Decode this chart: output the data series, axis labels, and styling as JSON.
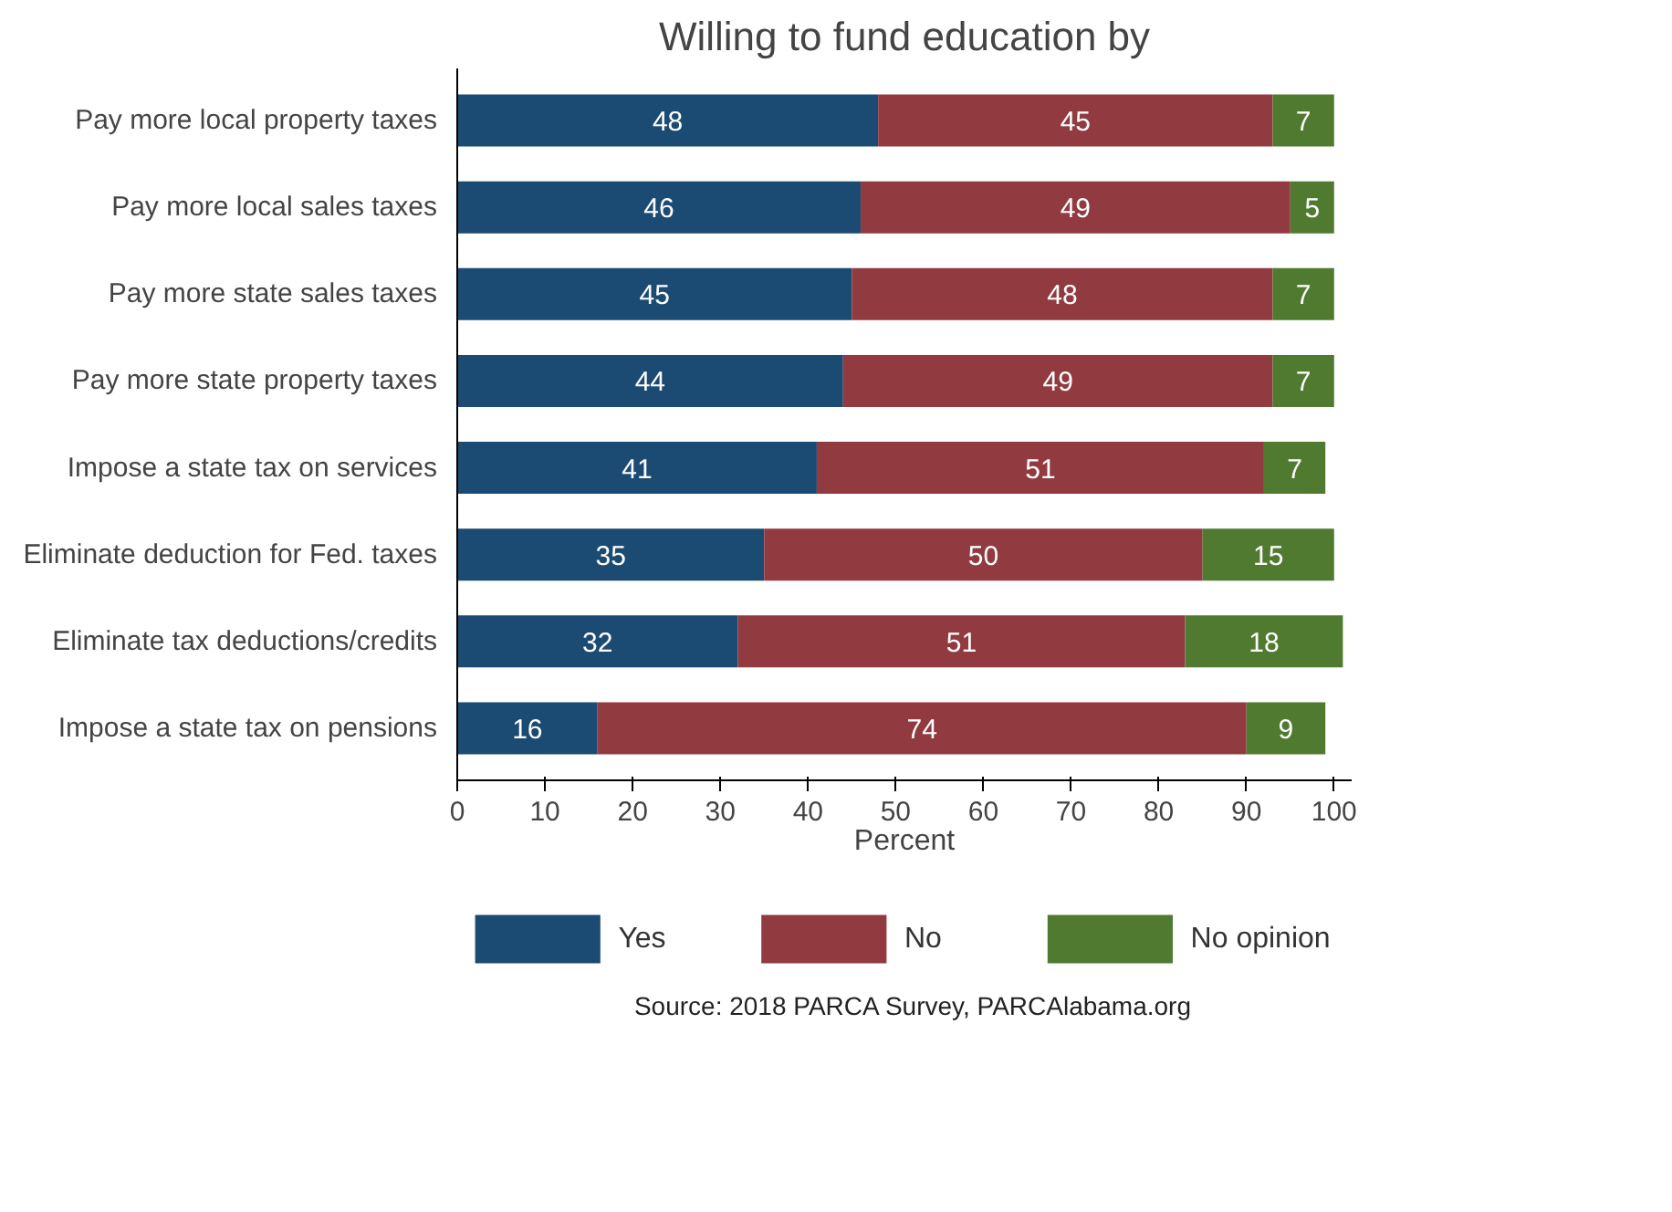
{
  "chart_data": {
    "type": "bar",
    "orientation": "horizontal",
    "stacked": true,
    "title": "Willing to fund education by",
    "xlabel": "Percent",
    "categories": [
      "Pay more local property taxes",
      "Pay more local sales taxes",
      "Pay more state sales taxes",
      "Pay more state property taxes",
      "Impose a state tax on services",
      "Eliminate deduction for Fed. taxes",
      "Eliminate tax deductions/credits",
      "Impose a state tax on pensions"
    ],
    "series": [
      {
        "name": "Yes",
        "color": "#1b4a72",
        "values": [
          48,
          46,
          45,
          44,
          41,
          35,
          32,
          16
        ]
      },
      {
        "name": "No",
        "color": "#913a40",
        "values": [
          45,
          49,
          48,
          49,
          51,
          50,
          51,
          74
        ]
      },
      {
        "name": "No opinion",
        "color": "#4f7a2f",
        "values": [
          7,
          5,
          7,
          7,
          7,
          15,
          18,
          9
        ]
      }
    ],
    "xlim": [
      0,
      102
    ],
    "xticks": [
      0,
      10,
      20,
      30,
      40,
      50,
      60,
      70,
      80,
      90,
      100
    ],
    "legend": "bottom",
    "data_labels": true,
    "annotations": [
      "Source: 2018 PARCA Survey, PARCAlabama.org"
    ]
  }
}
